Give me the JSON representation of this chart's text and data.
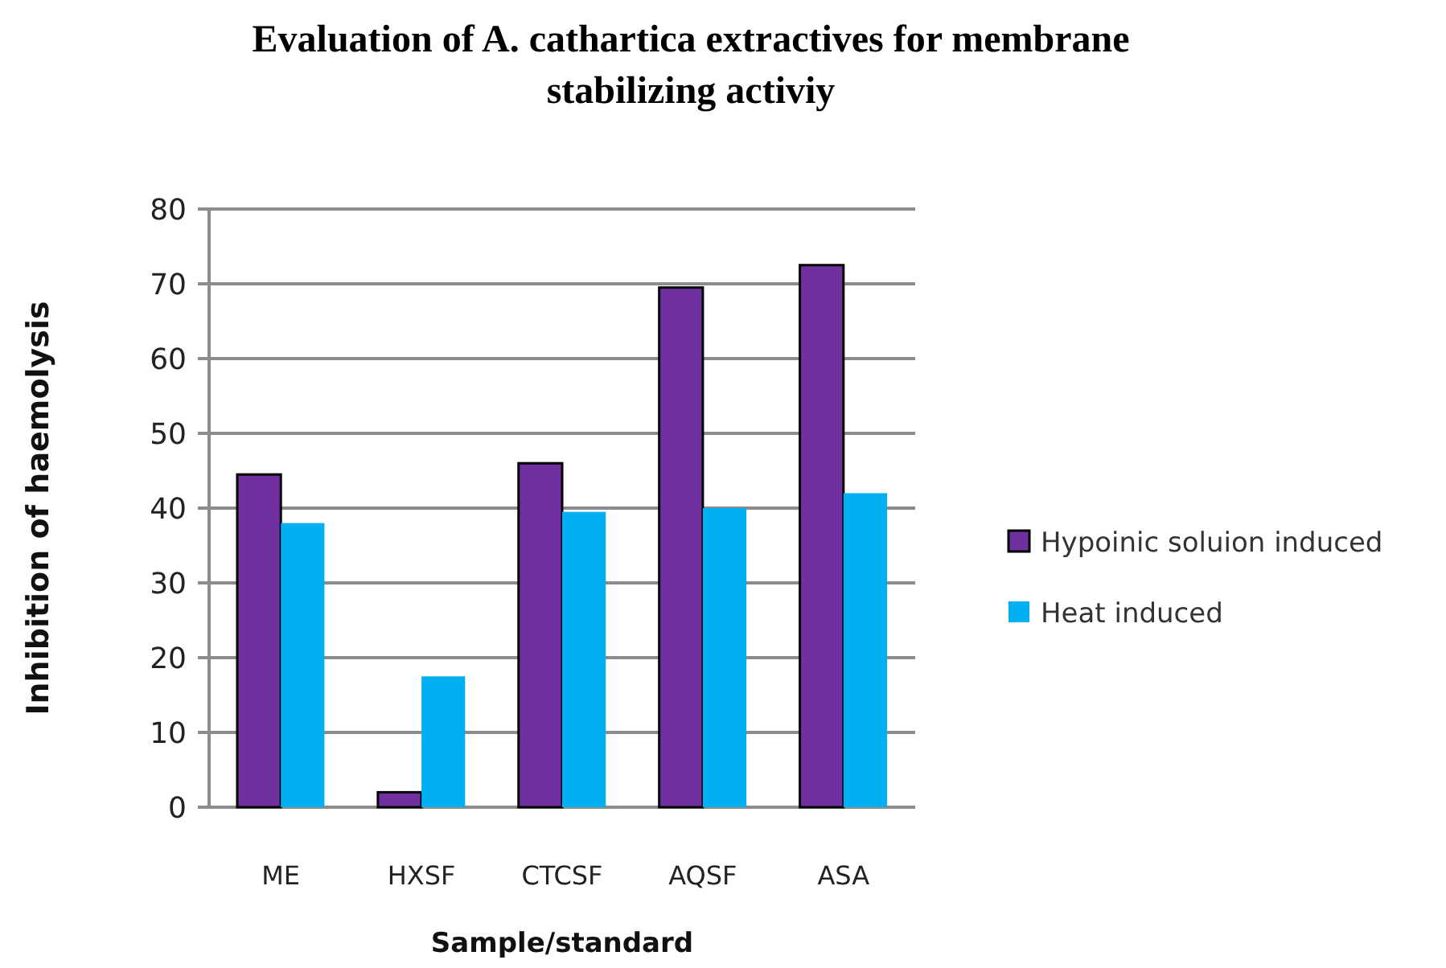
{
  "chart_data": {
    "type": "bar",
    "title": "Evaluation of A. cathartica extractives for membrane stabilizing activiy",
    "xlabel": "Sample/standard",
    "ylabel": "Inhibition of haemolysis",
    "categories": [
      "ME",
      "HXSF",
      "CTCSF",
      "AQSF",
      "ASA"
    ],
    "series": [
      {
        "name": "Hypoinic soluion induced",
        "color": "#7030a0",
        "values": [
          44.5,
          2,
          46,
          69.5,
          72.5
        ]
      },
      {
        "name": "Heat induced",
        "color": "#00b0f0",
        "values": [
          38,
          17.5,
          39.5,
          40,
          42
        ]
      }
    ],
    "ylim": [
      0,
      80
    ],
    "yticks": [
      0,
      10,
      20,
      30,
      40,
      50,
      60,
      70,
      80
    ],
    "grid": "y",
    "legend": "right"
  }
}
